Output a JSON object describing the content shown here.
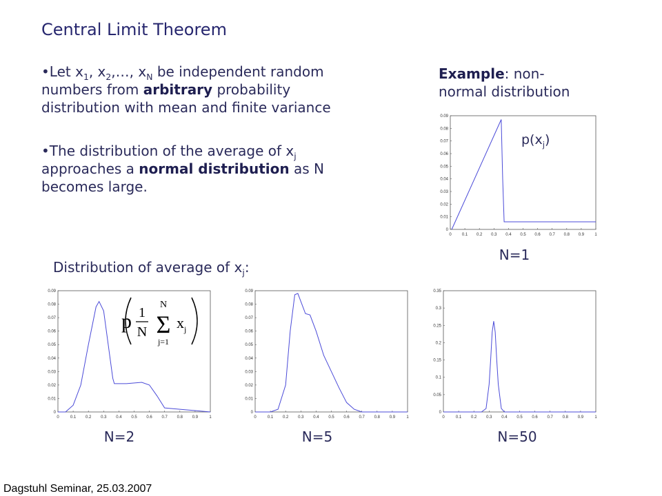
{
  "title": "Central Limit Theorem",
  "bullets": [
    [
      [
        {
          "text": "•Let x"
        },
        {
          "text": "1",
          "style": "sub"
        },
        {
          "text": ", x"
        },
        {
          "text": "2",
          "style": "sub"
        },
        {
          "text": ",…, x"
        },
        {
          "text": "N",
          "style": "sub"
        },
        {
          "text": " be independent random"
        }
      ],
      [
        {
          "text": "numbers from "
        },
        {
          "text": "arbitrary",
          "style": "bold"
        },
        {
          "text": " probability"
        }
      ],
      [
        {
          "text": "distribution with mean and finite variance"
        }
      ]
    ],
    [
      [
        {
          "text": "•The distribution of the average of x"
        },
        {
          "text": "j",
          "style": "sub"
        }
      ],
      [
        {
          "text": "approaches a "
        },
        {
          "text": "normal distribution",
          "style": "bold"
        },
        {
          "text": " as N"
        }
      ],
      [
        {
          "text": "becomes large."
        }
      ]
    ]
  ],
  "example": [
    [
      {
        "text": "Example",
        "style": "bold"
      },
      {
        "text": ": non-"
      }
    ],
    [
      {
        "text": "normal distribution"
      }
    ]
  ],
  "average_heading": [
    {
      "text": "Distribution of average of x"
    },
    {
      "text": "j",
      "style": "sub"
    },
    {
      "text": ":"
    }
  ],
  "footer": "Dagstuhl Seminar, 25.03.2007",
  "chart_data": [
    {
      "type": "line",
      "title": "N=1",
      "color": "#4a4ad8",
      "annotation": [
        {
          "text": "p(x"
        },
        {
          "text": "j",
          "style": "sub"
        },
        {
          "text": ")"
        }
      ],
      "x": [
        0.01,
        0.35,
        0.36,
        0.37,
        1
      ],
      "values": [
        0,
        0.087,
        0.04,
        0.006,
        0.006
      ],
      "xlim": [
        0,
        1
      ],
      "ylim": [
        0,
        0.09
      ],
      "xticks": [
        0,
        0.1,
        0.2,
        0.3,
        0.4,
        0.5,
        0.6,
        0.7,
        0.8,
        0.9,
        1
      ],
      "yticks": [
        0,
        0.01,
        0.02,
        0.03,
        0.04,
        0.05,
        0.06,
        0.07,
        0.08,
        0.09
      ]
    },
    {
      "type": "line",
      "title": "N=2",
      "color": "#4a4ad8",
      "formula": {
        "p": "p",
        "numerator": "1",
        "denominator": "N",
        "upper": "N",
        "symbol": "Σ",
        "lower": "j=1",
        "variable": "x",
        "index": "j"
      },
      "x": [
        0,
        0.05,
        0.1,
        0.15,
        0.2,
        0.25,
        0.27,
        0.3,
        0.33,
        0.36,
        0.37,
        0.45,
        0.55,
        0.6,
        0.65,
        0.7,
        0.8,
        0.9,
        1
      ],
      "values": [
        0,
        0,
        0.005,
        0.02,
        0.05,
        0.078,
        0.082,
        0.075,
        0.05,
        0.025,
        0.021,
        0.021,
        0.022,
        0.02,
        0.012,
        0.003,
        0.002,
        0.001,
        0
      ],
      "xlim": [
        0,
        1
      ],
      "ylim": [
        0,
        0.09
      ],
      "xticks": [
        0,
        0.1,
        0.2,
        0.3,
        0.4,
        0.5,
        0.6,
        0.7,
        0.8,
        0.9,
        1
      ],
      "yticks": [
        0,
        0.01,
        0.02,
        0.03,
        0.04,
        0.05,
        0.06,
        0.07,
        0.08,
        0.09
      ]
    },
    {
      "type": "line",
      "title": "N=5",
      "color": "#4a4ad8",
      "x": [
        0,
        0.1,
        0.15,
        0.2,
        0.23,
        0.26,
        0.28,
        0.3,
        0.33,
        0.36,
        0.4,
        0.45,
        0.5,
        0.55,
        0.6,
        0.65,
        0.7,
        1
      ],
      "values": [
        0,
        0,
        0.002,
        0.02,
        0.06,
        0.087,
        0.088,
        0.082,
        0.073,
        0.072,
        0.06,
        0.042,
        0.03,
        0.018,
        0.007,
        0.002,
        0,
        0
      ],
      "xlim": [
        0,
        1
      ],
      "ylim": [
        0,
        0.09
      ],
      "xticks": [
        0,
        0.1,
        0.2,
        0.3,
        0.4,
        0.5,
        0.6,
        0.7,
        0.8,
        0.9,
        1
      ],
      "yticks": [
        0,
        0.01,
        0.02,
        0.03,
        0.04,
        0.05,
        0.06,
        0.07,
        0.08,
        0.09
      ]
    },
    {
      "type": "line",
      "title": "N=50",
      "color": "#4a4ad8",
      "x": [
        0,
        0.25,
        0.28,
        0.3,
        0.31,
        0.32,
        0.33,
        0.34,
        0.35,
        0.36,
        0.38,
        0.4,
        1
      ],
      "values": [
        0,
        0,
        0.01,
        0.08,
        0.15,
        0.23,
        0.262,
        0.23,
        0.15,
        0.08,
        0.01,
        0,
        0
      ],
      "xlim": [
        0,
        1
      ],
      "ylim": [
        0,
        0.35
      ],
      "xticks": [
        0,
        0.1,
        0.2,
        0.3,
        0.4,
        0.5,
        0.6,
        0.7,
        0.8,
        0.9,
        1
      ],
      "yticks": [
        0,
        0.05,
        0.1,
        0.15,
        0.2,
        0.25,
        0.3,
        0.35
      ]
    }
  ]
}
